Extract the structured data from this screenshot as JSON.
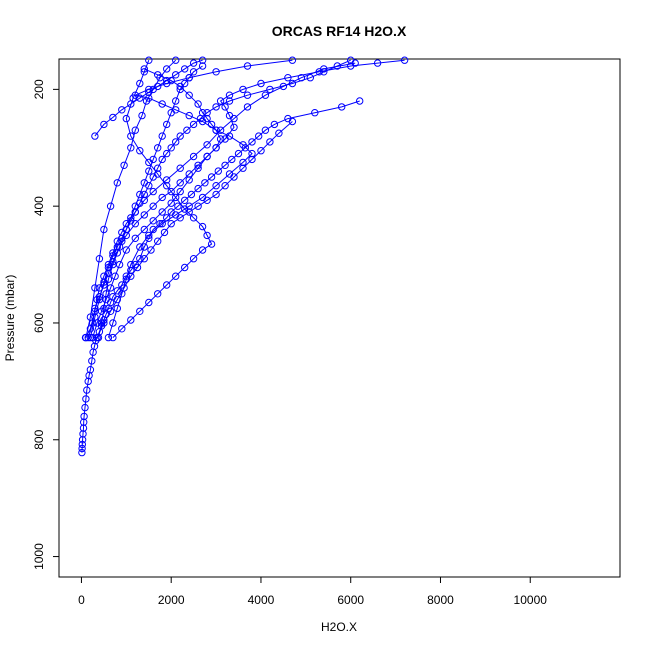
{
  "chart_data": {
    "type": "scatter",
    "title": "ORCAS RF14 H2O.X",
    "xlabel": "H2O.X",
    "ylabel": "Pressure (mbar)",
    "xlim": [
      -500,
      12000
    ],
    "ylim": [
      1035,
      148
    ],
    "y_reversed": true,
    "x_ticks": [
      "0",
      "2000",
      "4000",
      "6000",
      "8000",
      "10000"
    ],
    "y_ticks": [
      "200",
      "400",
      "600",
      "800",
      "1000"
    ],
    "grid": false,
    "legend": "none",
    "color": "#0000ff",
    "marker": "open-circle",
    "line_style": "solid",
    "series": [
      {
        "values": [
          [
            10,
            822
          ],
          [
            15,
            815
          ],
          [
            20,
            808
          ],
          [
            25,
            800
          ],
          [
            35,
            790
          ],
          [
            45,
            780
          ],
          [
            50,
            770
          ],
          [
            60,
            760
          ],
          [
            80,
            745
          ],
          [
            100,
            730
          ],
          [
            120,
            715
          ],
          [
            150,
            700
          ],
          [
            170,
            690
          ],
          [
            200,
            680
          ],
          [
            230,
            665
          ],
          [
            260,
            650
          ],
          [
            290,
            640
          ],
          [
            320,
            630
          ],
          [
            350,
            625
          ],
          [
            400,
            615
          ],
          [
            450,
            605
          ],
          [
            500,
            595
          ],
          [
            550,
            585
          ],
          [
            600,
            575
          ],
          [
            650,
            565
          ],
          [
            700,
            555
          ],
          [
            800,
            545
          ],
          [
            900,
            535
          ],
          [
            1000,
            520
          ],
          [
            1100,
            510
          ],
          [
            1200,
            500
          ],
          [
            1300,
            490
          ],
          [
            1400,
            470
          ],
          [
            1500,
            455
          ],
          [
            1600,
            440
          ],
          [
            1750,
            430
          ],
          [
            1900,
            420
          ],
          [
            2000,
            410
          ],
          [
            2150,
            400
          ],
          [
            2300,
            390
          ],
          [
            2450,
            380
          ],
          [
            2600,
            370
          ],
          [
            2750,
            360
          ],
          [
            2900,
            350
          ],
          [
            3050,
            340
          ],
          [
            3200,
            330
          ],
          [
            3350,
            320
          ],
          [
            3500,
            310
          ],
          [
            3650,
            300
          ],
          [
            3800,
            290
          ],
          [
            3950,
            280
          ],
          [
            4100,
            270
          ],
          [
            4300,
            260
          ],
          [
            4600,
            250
          ],
          [
            5200,
            240
          ],
          [
            5800,
            230
          ],
          [
            6200,
            220
          ]
        ]
      },
      {
        "values": [
          [
            100,
            625
          ],
          [
            200,
            590
          ],
          [
            300,
            540
          ],
          [
            400,
            490
          ],
          [
            500,
            440
          ],
          [
            650,
            400
          ],
          [
            800,
            360
          ],
          [
            950,
            330
          ],
          [
            1100,
            300
          ],
          [
            1200,
            270
          ],
          [
            1350,
            245
          ],
          [
            1450,
            220
          ],
          [
            1600,
            200
          ],
          [
            1750,
            180
          ],
          [
            1900,
            165
          ],
          [
            2100,
            150
          ]
        ]
      },
      {
        "values": [
          [
            90,
            625
          ],
          [
            200,
            610
          ],
          [
            300,
            580
          ],
          [
            350,
            560
          ],
          [
            400,
            540
          ],
          [
            500,
            520
          ],
          [
            600,
            500
          ],
          [
            700,
            480
          ],
          [
            800,
            460
          ],
          [
            900,
            445
          ],
          [
            1000,
            430
          ],
          [
            1200,
            410
          ],
          [
            1400,
            390
          ],
          [
            1600,
            375
          ],
          [
            1900,
            355
          ],
          [
            2200,
            335
          ],
          [
            2500,
            315
          ],
          [
            2800,
            295
          ],
          [
            3100,
            270
          ],
          [
            3400,
            250
          ],
          [
            3700,
            230
          ],
          [
            4100,
            210
          ],
          [
            4500,
            195
          ],
          [
            4900,
            180
          ],
          [
            5400,
            165
          ],
          [
            6100,
            155
          ]
        ]
      },
      {
        "values": [
          [
            350,
            625
          ],
          [
            500,
            600
          ],
          [
            650,
            580
          ],
          [
            800,
            560
          ],
          [
            950,
            540
          ],
          [
            1100,
            520
          ],
          [
            1250,
            505
          ],
          [
            1400,
            490
          ],
          [
            1550,
            475
          ],
          [
            1700,
            460
          ],
          [
            1850,
            445
          ],
          [
            2000,
            430
          ],
          [
            2200,
            420
          ],
          [
            2400,
            410
          ],
          [
            2600,
            400
          ],
          [
            2800,
            390
          ],
          [
            3000,
            380
          ],
          [
            3200,
            365
          ],
          [
            3400,
            350
          ],
          [
            3600,
            335
          ],
          [
            3800,
            320
          ],
          [
            4000,
            305
          ],
          [
            4200,
            290
          ],
          [
            4400,
            275
          ],
          [
            4700,
            255
          ]
        ]
      },
      {
        "values": [
          [
            700,
            625
          ],
          [
            900,
            610
          ],
          [
            1100,
            595
          ],
          [
            1300,
            580
          ],
          [
            1500,
            565
          ],
          [
            1700,
            550
          ],
          [
            1900,
            535
          ],
          [
            2100,
            520
          ],
          [
            2300,
            505
          ],
          [
            2500,
            490
          ],
          [
            2700,
            475
          ],
          [
            2900,
            465
          ],
          [
            2800,
            450
          ],
          [
            2700,
            435
          ],
          [
            2500,
            420
          ],
          [
            2300,
            405
          ],
          [
            2100,
            385
          ],
          [
            1900,
            365
          ],
          [
            1700,
            345
          ],
          [
            1500,
            325
          ],
          [
            1300,
            305
          ],
          [
            1100,
            280
          ],
          [
            1000,
            250
          ],
          [
            1150,
            215
          ],
          [
            1300,
            190
          ],
          [
            1400,
            170
          ],
          [
            1500,
            150
          ]
        ]
      },
      {
        "values": [
          [
            600,
            625
          ],
          [
            700,
            600
          ],
          [
            800,
            575
          ],
          [
            900,
            550
          ],
          [
            1000,
            525
          ],
          [
            1100,
            500
          ],
          [
            1300,
            470
          ],
          [
            1500,
            450
          ],
          [
            1800,
            430
          ],
          [
            2100,
            415
          ],
          [
            2400,
            400
          ],
          [
            2700,
            385
          ],
          [
            3000,
            365
          ],
          [
            3300,
            345
          ],
          [
            3600,
            325
          ],
          [
            3800,
            310
          ],
          [
            3600,
            295
          ],
          [
            3300,
            280
          ],
          [
            3000,
            270
          ],
          [
            2700,
            255
          ],
          [
            2400,
            245
          ],
          [
            2100,
            235
          ],
          [
            1800,
            225
          ],
          [
            1500,
            215
          ],
          [
            1200,
            210
          ],
          [
            1500,
            200
          ],
          [
            1900,
            190
          ],
          [
            2400,
            180
          ],
          [
            3000,
            170
          ],
          [
            3700,
            160
          ],
          [
            4700,
            150
          ]
        ]
      },
      {
        "values": [
          [
            250,
            625
          ],
          [
            350,
            600
          ],
          [
            450,
            580
          ],
          [
            550,
            560
          ],
          [
            650,
            540
          ],
          [
            750,
            520
          ],
          [
            850,
            500
          ],
          [
            1000,
            475
          ],
          [
            1200,
            455
          ],
          [
            1400,
            440
          ],
          [
            1600,
            425
          ],
          [
            1800,
            410
          ],
          [
            2000,
            395
          ],
          [
            2200,
            375
          ],
          [
            2400,
            355
          ],
          [
            2600,
            335
          ],
          [
            2800,
            315
          ],
          [
            3000,
            300
          ],
          [
            3100,
            285
          ],
          [
            3000,
            270
          ],
          [
            2900,
            260
          ],
          [
            2800,
            250
          ],
          [
            2700,
            240
          ],
          [
            2600,
            225
          ],
          [
            2400,
            210
          ],
          [
            2200,
            195
          ],
          [
            2000,
            185
          ],
          [
            1700,
            175
          ],
          [
            1400,
            165
          ]
        ]
      },
      {
        "values": [
          [
            150,
            625
          ],
          [
            250,
            600
          ],
          [
            300,
            575
          ],
          [
            400,
            555
          ],
          [
            500,
            535
          ],
          [
            600,
            515
          ],
          [
            700,
            495
          ],
          [
            850,
            470
          ],
          [
            1000,
            450
          ],
          [
            1200,
            430
          ],
          [
            1400,
            415
          ],
          [
            1600,
            400
          ],
          [
            1800,
            385
          ],
          [
            2000,
            375
          ],
          [
            2200,
            360
          ],
          [
            2400,
            345
          ],
          [
            2600,
            330
          ],
          [
            2800,
            315
          ],
          [
            3000,
            300
          ],
          [
            3200,
            285
          ],
          [
            3400,
            265
          ],
          [
            3300,
            245
          ],
          [
            3200,
            230
          ],
          [
            3100,
            220
          ],
          [
            3300,
            210
          ],
          [
            3600,
            200
          ],
          [
            4000,
            190
          ],
          [
            4600,
            180
          ],
          [
            5300,
            170
          ],
          [
            6000,
            160
          ],
          [
            6600,
            155
          ],
          [
            7200,
            150
          ]
        ]
      },
      {
        "values": [
          [
            380,
            625
          ],
          [
            450,
            600
          ],
          [
            500,
            575
          ],
          [
            550,
            550
          ],
          [
            600,
            525
          ],
          [
            700,
            500
          ],
          [
            800,
            480
          ],
          [
            900,
            460
          ],
          [
            1000,
            440
          ],
          [
            1100,
            420
          ],
          [
            1200,
            400
          ],
          [
            1300,
            380
          ],
          [
            1400,
            360
          ],
          [
            1500,
            340
          ],
          [
            1600,
            320
          ],
          [
            1700,
            300
          ],
          [
            1800,
            280
          ],
          [
            1900,
            260
          ],
          [
            2000,
            240
          ],
          [
            2100,
            220
          ],
          [
            2200,
            200
          ],
          [
            2300,
            190
          ],
          [
            2400,
            180
          ],
          [
            2500,
            170
          ],
          [
            2700,
            160
          ]
        ]
      },
      {
        "values": [
          [
            200,
            625
          ],
          [
            300,
            590
          ],
          [
            400,
            560
          ],
          [
            500,
            530
          ],
          [
            600,
            505
          ],
          [
            700,
            485
          ],
          [
            800,
            470
          ],
          [
            900,
            455
          ],
          [
            1000,
            440
          ],
          [
            1100,
            425
          ],
          [
            1200,
            410
          ],
          [
            1300,
            395
          ],
          [
            1400,
            380
          ],
          [
            1500,
            365
          ],
          [
            1600,
            350
          ],
          [
            1700,
            335
          ],
          [
            1800,
            320
          ],
          [
            1900,
            310
          ],
          [
            2000,
            300
          ],
          [
            2100,
            290
          ],
          [
            2200,
            280
          ],
          [
            2350,
            270
          ],
          [
            2500,
            260
          ],
          [
            2650,
            250
          ],
          [
            2800,
            240
          ],
          [
            3000,
            230
          ],
          [
            3300,
            220
          ],
          [
            3700,
            210
          ],
          [
            4200,
            200
          ],
          [
            4700,
            190
          ],
          [
            5100,
            180
          ],
          [
            5400,
            170
          ],
          [
            5700,
            160
          ],
          [
            6000,
            150
          ]
        ]
      },
      {
        "values": [
          [
            300,
            280
          ],
          [
            500,
            260
          ],
          [
            700,
            248
          ],
          [
            900,
            235
          ],
          [
            1100,
            225
          ],
          [
            1300,
            215
          ],
          [
            1500,
            205
          ],
          [
            1700,
            195
          ],
          [
            1900,
            185
          ],
          [
            2100,
            175
          ],
          [
            2300,
            165
          ],
          [
            2500,
            155
          ],
          [
            2700,
            150
          ]
        ]
      }
    ]
  }
}
